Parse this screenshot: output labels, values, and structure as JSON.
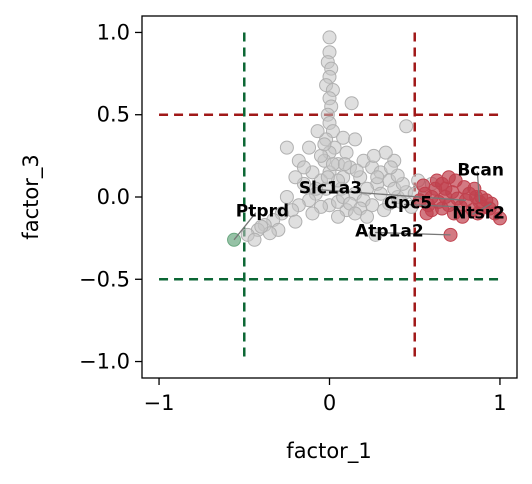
{
  "chart_data": {
    "type": "scatter",
    "title": "",
    "xlabel": "factor_1",
    "ylabel": "factor_3",
    "xlim": [
      -1.1,
      1.1
    ],
    "ylim": [
      -1.1,
      1.1
    ],
    "x_ticks": [
      {
        "value": -1,
        "label": "−1"
      },
      {
        "value": 0,
        "label": "0"
      },
      {
        "value": 1,
        "label": "1"
      }
    ],
    "y_ticks": [
      {
        "value": 1.0,
        "label": "1.0"
      },
      {
        "value": 0.5,
        "label": "0.5"
      },
      {
        "value": 0.0,
        "label": "0.0"
      },
      {
        "value": -0.5,
        "label": "−0.5"
      },
      {
        "value": -1.0,
        "label": "−1.0"
      }
    ],
    "grid": false,
    "threshold_lines": [
      {
        "orientation": "horizontal",
        "value": 0.5,
        "color": "#a01818"
      },
      {
        "orientation": "horizontal",
        "value": -0.5,
        "color": "#0b6634"
      },
      {
        "orientation": "vertical",
        "value": 0.5,
        "color": "#a01818"
      },
      {
        "orientation": "vertical",
        "value": -0.5,
        "color": "#0b6634"
      }
    ],
    "colors": {
      "background": "#c4c4c4",
      "high": "#c0424e",
      "low": "#6aa880"
    },
    "series": [
      {
        "group": "background",
        "points": [
          [
            0.0,
            0.97
          ],
          [
            0.0,
            0.88
          ],
          [
            -0.01,
            0.82
          ],
          [
            0.01,
            0.78
          ],
          [
            0.0,
            0.73
          ],
          [
            -0.02,
            0.68
          ],
          [
            0.02,
            0.65
          ],
          [
            0.0,
            0.6
          ],
          [
            0.01,
            0.55
          ],
          [
            -0.01,
            0.5
          ],
          [
            0.0,
            0.45
          ],
          [
            0.02,
            0.4
          ],
          [
            -0.02,
            0.35
          ],
          [
            0.03,
            0.3
          ],
          [
            0.0,
            0.27
          ],
          [
            -0.03,
            0.22
          ],
          [
            0.05,
            0.2
          ],
          [
            0.0,
            0.15
          ],
          [
            0.08,
            0.12
          ],
          [
            -0.05,
            0.1
          ],
          [
            0.13,
            0.57
          ],
          [
            0.08,
            0.36
          ],
          [
            0.15,
            0.35
          ],
          [
            0.1,
            0.27
          ],
          [
            0.2,
            0.22
          ],
          [
            0.25,
            0.18
          ],
          [
            0.3,
            0.15
          ],
          [
            0.35,
            0.1
          ],
          [
            0.28,
            0.08
          ],
          [
            0.22,
            0.05
          ],
          [
            0.45,
            0.43
          ],
          [
            0.38,
            0.22
          ],
          [
            0.33,
            0.27
          ],
          [
            0.18,
            0.12
          ],
          [
            0.12,
            0.18
          ],
          [
            0.07,
            0.05
          ],
          [
            0.15,
            0.02
          ],
          [
            0.2,
            -0.02
          ],
          [
            0.3,
            0.02
          ],
          [
            0.35,
            -0.04
          ],
          [
            0.4,
            0.0
          ],
          [
            0.45,
            0.03
          ],
          [
            0.5,
            0.02
          ],
          [
            0.55,
            -0.01
          ],
          [
            0.48,
            -0.06
          ],
          [
            0.42,
            -0.03
          ],
          [
            0.38,
            0.05
          ],
          [
            0.25,
            -0.05
          ],
          [
            0.1,
            -0.08
          ],
          [
            0.05,
            -0.12
          ],
          [
            -0.02,
            0.05
          ],
          [
            -0.08,
            0.02
          ],
          [
            -0.12,
            -0.02
          ],
          [
            -0.18,
            -0.05
          ],
          [
            -0.22,
            -0.08
          ],
          [
            -0.28,
            -0.1
          ],
          [
            -0.33,
            -0.14
          ],
          [
            -0.38,
            -0.17
          ],
          [
            -0.42,
            -0.2
          ],
          [
            -0.48,
            -0.23
          ],
          [
            -0.25,
            0.0
          ],
          [
            -0.15,
            0.08
          ],
          [
            -0.1,
            0.15
          ],
          [
            -0.2,
            0.12
          ],
          [
            -0.05,
            0.25
          ],
          [
            -0.12,
            0.3
          ],
          [
            -0.07,
            0.4
          ],
          [
            -0.25,
            0.3
          ],
          [
            -0.18,
            0.22
          ],
          [
            -0.03,
            0.32
          ],
          [
            0.0,
            -0.05
          ],
          [
            0.05,
            -0.03
          ],
          [
            0.08,
            0.0
          ],
          [
            0.12,
            -0.04
          ],
          [
            0.18,
            -0.07
          ],
          [
            0.22,
            -0.12
          ],
          [
            0.27,
            -0.23
          ],
          [
            0.15,
            -0.1
          ],
          [
            -0.05,
            -0.06
          ],
          [
            -0.1,
            -0.1
          ],
          [
            -0.3,
            -0.2
          ],
          [
            -0.35,
            -0.22
          ],
          [
            -0.4,
            -0.18
          ],
          [
            -0.44,
            -0.26
          ],
          [
            -0.2,
            -0.15
          ],
          [
            0.32,
            -0.08
          ],
          [
            0.28,
            0.12
          ],
          [
            0.05,
            0.1
          ],
          [
            0.02,
            0.2
          ],
          [
            -0.01,
            0.12
          ],
          [
            0.6,
            0.08
          ],
          [
            0.52,
            0.1
          ],
          [
            0.43,
            0.08
          ],
          [
            0.4,
            0.13
          ],
          [
            0.36,
            0.18
          ],
          [
            0.26,
            0.25
          ],
          [
            0.16,
            0.16
          ],
          [
            0.09,
            0.2
          ],
          [
            -0.15,
            0.18
          ],
          [
            -0.08,
            0.05
          ]
        ]
      },
      {
        "group": "high",
        "points": [
          [
            0.53,
            -0.02
          ],
          [
            0.56,
            0.02
          ],
          [
            0.58,
            -0.05
          ],
          [
            0.6,
            0.0
          ],
          [
            0.62,
            0.05
          ],
          [
            0.64,
            -0.03
          ],
          [
            0.66,
            0.08
          ],
          [
            0.68,
            0.0
          ],
          [
            0.7,
            -0.05
          ],
          [
            0.72,
            0.03
          ],
          [
            0.74,
            0.1
          ],
          [
            0.75,
            -0.01
          ],
          [
            0.77,
            -0.06
          ],
          [
            0.79,
            0.06
          ],
          [
            0.8,
            -0.02
          ],
          [
            0.82,
            0.02
          ],
          [
            0.84,
            -0.08
          ],
          [
            0.86,
            0.0
          ],
          [
            0.88,
            -0.03
          ],
          [
            0.9,
            -0.06
          ],
          [
            0.92,
            -0.02
          ],
          [
            0.94,
            -0.07
          ],
          [
            0.97,
            -0.1
          ],
          [
            1.0,
            -0.13
          ],
          [
            0.95,
            -0.04
          ],
          [
            0.7,
            0.12
          ],
          [
            0.66,
            -0.07
          ],
          [
            0.6,
            -0.08
          ],
          [
            0.73,
            -0.1
          ],
          [
            0.63,
            0.1
          ],
          [
            0.78,
            -0.12
          ],
          [
            0.85,
            0.05
          ],
          [
            0.71,
            -0.23
          ],
          [
            0.55,
            0.07
          ],
          [
            0.87,
            -0.1
          ],
          [
            0.68,
            0.05
          ],
          [
            0.89,
            0.0
          ],
          [
            0.57,
            -0.1
          ]
        ]
      },
      {
        "group": "low",
        "points": [
          [
            -0.56,
            -0.26
          ]
        ]
      }
    ],
    "annotations": [
      {
        "label": "Bcan",
        "x": 0.75,
        "y": 0.13,
        "point": [
          0.88,
          -0.03
        ]
      },
      {
        "label": "Slc1a3",
        "x": -0.18,
        "y": 0.02,
        "point": [
          0.8,
          -0.02
        ]
      },
      {
        "label": "Gpc5",
        "x": 0.32,
        "y": -0.07,
        "point": [
          0.77,
          -0.06
        ]
      },
      {
        "label": "Ntsr2",
        "x": 0.72,
        "y": -0.13,
        "point": [
          0.95,
          -0.04
        ]
      },
      {
        "label": "Ptprd",
        "x": -0.55,
        "y": -0.12,
        "point": [
          -0.56,
          -0.26
        ]
      },
      {
        "label": "Atp1a2",
        "x": 0.15,
        "y": -0.24,
        "point": [
          0.71,
          -0.23
        ]
      }
    ]
  }
}
